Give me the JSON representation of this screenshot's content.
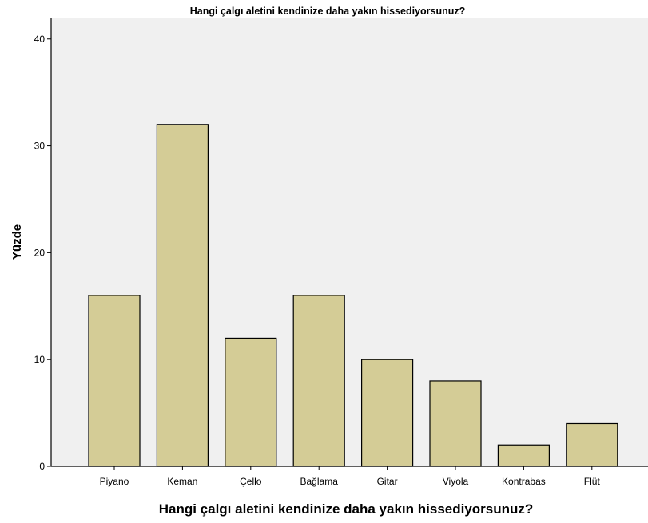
{
  "chart_data": {
    "type": "bar",
    "title": "Hangi çalgı aletini kendinize daha yakın hissediyorsunuz?",
    "xlabel": "Hangi çalgı aletini kendinize daha yakın hissediyorsunuz?",
    "ylabel": "Yüzde",
    "categories": [
      "Piyano",
      "Keman",
      "Çello",
      "Bağlama",
      "Gitar",
      "Viyola",
      "Kontrabas",
      "Flüt"
    ],
    "values": [
      16,
      32,
      12,
      16,
      10,
      8,
      2,
      4
    ],
    "ylim": [
      0,
      42
    ],
    "yticks": [
      "0",
      "10",
      "20",
      "30",
      "40"
    ],
    "grid": false,
    "colors": {
      "bar_fill": "#d4cc96",
      "plot_background": "#f0f0f0",
      "axis": "#000000"
    }
  }
}
